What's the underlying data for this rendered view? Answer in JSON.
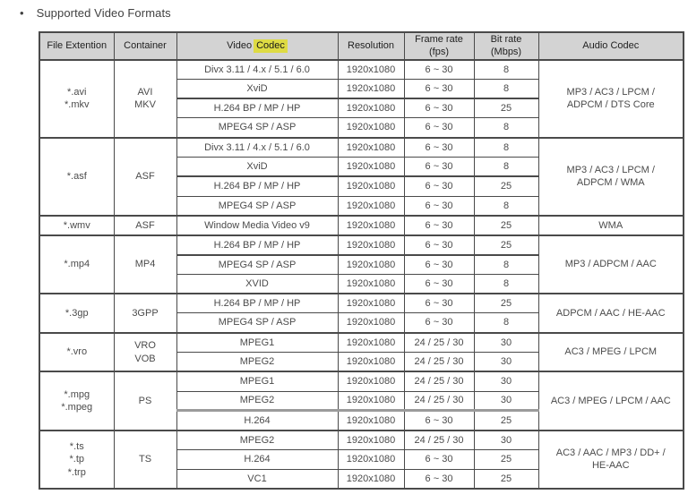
{
  "page": {
    "bullet": "•",
    "title": "Supported Video Formats"
  },
  "colors": {
    "highlight": "#dedb44",
    "header_bg": "#d3d3d3",
    "border_dark": "#4a4a4a",
    "border_light": "#ababab"
  },
  "table": {
    "headers": {
      "file_extension": "File Extention",
      "container": "Container",
      "video_codec_prefix": "Video",
      "video_codec_highlight": "Codec",
      "resolution": "Resolution",
      "frame_rate_line1": "Frame rate",
      "frame_rate_line2": "(fps)",
      "bit_rate_line1": "Bit rate",
      "bit_rate_line2": "(Mbps)",
      "audio_codec": "Audio Codec"
    },
    "groups": [
      {
        "file_extension": [
          "*.avi",
          "*.mkv"
        ],
        "container": [
          "AVI",
          "MKV"
        ],
        "audio_codec": [
          "MP3 / AC3 / LPCM /",
          "ADPCM / DTS Core"
        ],
        "strong_rule_before_row": 2,
        "strong_rule_style": "dark",
        "rows": [
          {
            "video_codec": "Divx 3.11 / 4.x / 5.1 / 6.0",
            "resolution": "1920x1080",
            "frame_rate": "6 ~ 30",
            "bit_rate": "8"
          },
          {
            "video_codec": "XviD",
            "resolution": "1920x1080",
            "frame_rate": "6 ~ 30",
            "bit_rate": "8"
          },
          {
            "video_codec": "H.264 BP / MP / HP",
            "resolution": "1920x1080",
            "frame_rate": "6 ~ 30",
            "bit_rate": "25"
          },
          {
            "video_codec": "MPEG4 SP / ASP",
            "resolution": "1920x1080",
            "frame_rate": "6 ~ 30",
            "bit_rate": "8"
          }
        ]
      },
      {
        "file_extension": [
          "*.asf"
        ],
        "container": [
          "ASF"
        ],
        "audio_codec": [
          "MP3 / AC3 / LPCM /",
          "ADPCM / WMA"
        ],
        "strong_rule_before_row": 2,
        "strong_rule_style": "dark",
        "rows": [
          {
            "video_codec": "Divx 3.11 / 4.x / 5.1 / 6.0",
            "resolution": "1920x1080",
            "frame_rate": "6 ~ 30",
            "bit_rate": "8"
          },
          {
            "video_codec": "XviD",
            "resolution": "1920x1080",
            "frame_rate": "6 ~ 30",
            "bit_rate": "8"
          },
          {
            "video_codec": "H.264 BP / MP / HP",
            "resolution": "1920x1080",
            "frame_rate": "6 ~ 30",
            "bit_rate": "25"
          },
          {
            "video_codec": "MPEG4 SP / ASP",
            "resolution": "1920x1080",
            "frame_rate": "6 ~ 30",
            "bit_rate": "8"
          }
        ]
      },
      {
        "file_extension": [
          "*.wmv"
        ],
        "container": [
          "ASF"
        ],
        "audio_codec": [
          "WMA"
        ],
        "rows": [
          {
            "video_codec": "Window Media Video v9",
            "resolution": "1920x1080",
            "frame_rate": "6 ~ 30",
            "bit_rate": "25"
          }
        ]
      },
      {
        "file_extension": [
          "*.mp4"
        ],
        "container": [
          "MP4"
        ],
        "audio_codec": [
          "MP3 / ADPCM / AAC"
        ],
        "strong_rule_before_row": 1,
        "strong_rule_style": "dark",
        "rows": [
          {
            "video_codec": "H.264 BP / MP / HP",
            "resolution": "1920x1080",
            "frame_rate": "6 ~ 30",
            "bit_rate": "25"
          },
          {
            "video_codec": "MPEG4 SP / ASP",
            "resolution": "1920x1080",
            "frame_rate": "6 ~ 30",
            "bit_rate": "8"
          },
          {
            "video_codec": "XVID",
            "resolution": "1920x1080",
            "frame_rate": "6 ~ 30",
            "bit_rate": "8"
          }
        ]
      },
      {
        "file_extension": [
          "*.3gp"
        ],
        "container": [
          "3GPP"
        ],
        "audio_codec": [
          "ADPCM / AAC / HE-AAC"
        ],
        "rows": [
          {
            "video_codec": "H.264 BP / MP / HP",
            "resolution": "1920x1080",
            "frame_rate": "6 ~ 30",
            "bit_rate": "25"
          },
          {
            "video_codec": "MPEG4 SP / ASP",
            "resolution": "1920x1080",
            "frame_rate": "6 ~ 30",
            "bit_rate": "8"
          }
        ]
      },
      {
        "file_extension": [
          "*.vro"
        ],
        "container": [
          "VRO",
          "VOB"
        ],
        "audio_codec": [
          "AC3 / MPEG / LPCM"
        ],
        "rows": [
          {
            "video_codec": "MPEG1",
            "resolution": "1920x1080",
            "frame_rate": "24 / 25 / 30",
            "bit_rate": "30"
          },
          {
            "video_codec": "MPEG2",
            "resolution": "1920x1080",
            "frame_rate": "24 / 25 / 30",
            "bit_rate": "30"
          }
        ]
      },
      {
        "file_extension": [
          "*.mpg",
          "*.mpeg"
        ],
        "container": [
          "PS"
        ],
        "audio_codec": [
          "AC3 / MPEG / LPCM / AAC"
        ],
        "strong_rule_before_row": 2,
        "strong_rule_style": "gray",
        "rows": [
          {
            "video_codec": "MPEG1",
            "resolution": "1920x1080",
            "frame_rate": "24 / 25 / 30",
            "bit_rate": "30"
          },
          {
            "video_codec": "MPEG2",
            "resolution": "1920x1080",
            "frame_rate": "24 / 25 / 30",
            "bit_rate": "30"
          },
          {
            "video_codec": "H.264",
            "resolution": "1920x1080",
            "frame_rate": "6 ~ 30",
            "bit_rate": "25"
          }
        ]
      },
      {
        "file_extension": [
          "*.ts",
          "*.tp",
          "*.trp"
        ],
        "container": [
          "TS"
        ],
        "audio_codec": [
          "AC3 / AAC / MP3 / DD+ /",
          "HE-AAC"
        ],
        "rows": [
          {
            "video_codec": "MPEG2",
            "resolution": "1920x1080",
            "frame_rate": "24 / 25 / 30",
            "bit_rate": "30"
          },
          {
            "video_codec": "H.264",
            "resolution": "1920x1080",
            "frame_rate": "6 ~ 30",
            "bit_rate": "25"
          },
          {
            "video_codec": "VC1",
            "resolution": "1920x1080",
            "frame_rate": "6 ~ 30",
            "bit_rate": "25"
          }
        ]
      }
    ]
  }
}
